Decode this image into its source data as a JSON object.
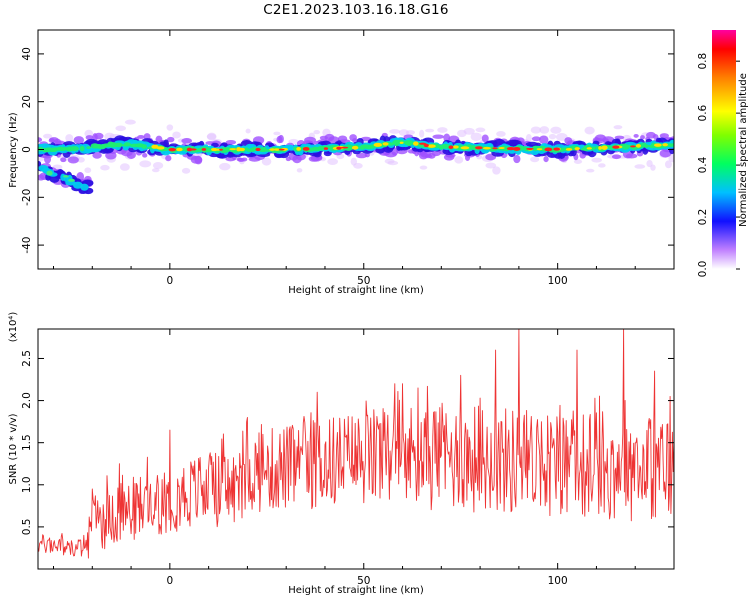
{
  "title": "C2E1.2023.103.16.18.G16",
  "chart_data": [
    {
      "type": "heatmap",
      "xlabel": "Height of straight line (km)",
      "ylabel": "Frequency (Hz)",
      "xlim": [
        -34,
        130
      ],
      "ylim": [
        -50,
        50
      ],
      "x_ticks": [
        0,
        50,
        100
      ],
      "y_ticks": [
        -40,
        -20,
        0,
        20,
        40
      ],
      "y_tick_labels": [
        "-40",
        "-20",
        "0",
        "20",
        "40"
      ],
      "ridge": [
        {
          "x": -34,
          "y": 0
        },
        {
          "x": -25,
          "y": 0
        },
        {
          "x": -15,
          "y": 2
        },
        {
          "x": -10,
          "y": 2
        },
        {
          "x": 0,
          "y": 0
        },
        {
          "x": 30,
          "y": 0
        },
        {
          "x": 50,
          "y": 1
        },
        {
          "x": 60,
          "y": 3
        },
        {
          "x": 70,
          "y": 1
        },
        {
          "x": 100,
          "y": 0
        },
        {
          "x": 130,
          "y": 2
        }
      ],
      "secondary_branch": [
        {
          "x": -34,
          "y": -8
        },
        {
          "x": -27,
          "y": -12
        },
        {
          "x": -22,
          "y": -16
        }
      ],
      "colorbar": {
        "label": "Normalized spectral amplitude",
        "range": [
          0,
          0.92
        ],
        "ticks": [
          0.0,
          0.2,
          0.4,
          0.6,
          0.8
        ],
        "tick_labels": [
          "0.0",
          "0.2",
          "0.4",
          "0.6",
          "0.8"
        ]
      }
    },
    {
      "type": "line",
      "xlabel": "Height of straight line (km)",
      "ylabel": "SNR (10 * v/v)",
      "y_multiplier": "(x10⁴)",
      "xlim": [
        -34,
        130
      ],
      "ylim": [
        0,
        2.85
      ],
      "x_ticks": [
        0,
        50,
        100
      ],
      "y_ticks": [
        0.5,
        1.0,
        1.5,
        2.0,
        2.5
      ],
      "y_tick_labels": [
        "0.5",
        "1.0",
        "1.5",
        "2.0",
        "2.5"
      ],
      "series": [
        {
          "color": "#ee3333",
          "trend": [
            {
              "x": -34,
              "y": 0.3
            },
            {
              "x": -22,
              "y": 0.25
            },
            {
              "x": -20,
              "y": 0.55
            },
            {
              "x": -10,
              "y": 0.7
            },
            {
              "x": 0,
              "y": 0.85
            },
            {
              "x": 10,
              "y": 0.95
            },
            {
              "x": 18,
              "y": 0.95
            },
            {
              "x": 20,
              "y": 1.15
            },
            {
              "x": 30,
              "y": 1.2
            },
            {
              "x": 45,
              "y": 1.3
            },
            {
              "x": 60,
              "y": 1.35
            },
            {
              "x": 80,
              "y": 1.3
            },
            {
              "x": 100,
              "y": 1.25
            },
            {
              "x": 130,
              "y": 1.2
            }
          ],
          "peaks": [
            {
              "x": -20,
              "y": 0.95
            },
            {
              "x": -13,
              "y": 1.25
            },
            {
              "x": 0,
              "y": 1.65
            },
            {
              "x": 10,
              "y": 1.2
            },
            {
              "x": 20,
              "y": 1.8
            },
            {
              "x": 38,
              "y": 2.1
            },
            {
              "x": 58,
              "y": 2.2
            },
            {
              "x": 60,
              "y": 2.2
            },
            {
              "x": 75,
              "y": 2.3
            },
            {
              "x": 84,
              "y": 2.6
            },
            {
              "x": 90,
              "y": 2.85
            },
            {
              "x": 105,
              "y": 2.6
            },
            {
              "x": 117,
              "y": 2.85
            },
            {
              "x": 125,
              "y": 2.35
            },
            {
              "x": 129,
              "y": 2.05
            }
          ]
        }
      ]
    }
  ]
}
